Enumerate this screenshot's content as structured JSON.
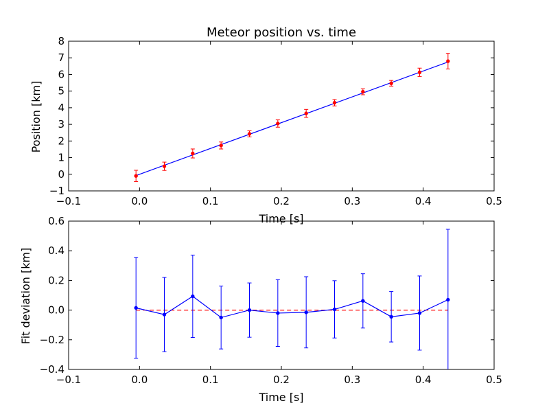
{
  "chart_data": [
    {
      "type": "line",
      "title": "Meteor position vs. time",
      "xlabel": "Time [s]",
      "ylabel": "Position [km]",
      "xlim": [
        -0.1,
        0.5
      ],
      "ylim": [
        -1,
        8
      ],
      "xticks": [
        "−0.1",
        "0.0",
        "0.1",
        "0.2",
        "0.3",
        "0.4",
        "0.5"
      ],
      "xtick_values": [
        -0.1,
        0.0,
        0.1,
        0.2,
        0.3,
        0.4,
        0.5
      ],
      "yticks": [
        "−1",
        "0",
        "1",
        "2",
        "3",
        "4",
        "5",
        "6",
        "7",
        "8"
      ],
      "ytick_values": [
        -1,
        0,
        1,
        2,
        3,
        4,
        5,
        6,
        7,
        8
      ],
      "grid": false,
      "series": [
        {
          "kind": "fit-line",
          "color": "#0000ff",
          "x": [
            -0.005,
            0.435
          ],
          "y": [
            -0.08,
            6.75
          ]
        },
        {
          "kind": "errorbar-points",
          "color": "#ff0000",
          "x": [
            -0.005,
            0.035,
            0.075,
            0.115,
            0.155,
            0.195,
            0.235,
            0.275,
            0.315,
            0.355,
            0.395,
            0.435
          ],
          "y": [
            -0.1,
            0.48,
            1.25,
            1.73,
            2.43,
            3.05,
            3.66,
            4.3,
            4.96,
            5.47,
            6.13,
            6.8
          ],
          "err": [
            0.34,
            0.25,
            0.27,
            0.21,
            0.18,
            0.22,
            0.24,
            0.19,
            0.18,
            0.17,
            0.25,
            0.47
          ]
        }
      ]
    },
    {
      "type": "line",
      "title": "",
      "xlabel": "Time [s]",
      "ylabel": "Fit deviation [km]",
      "xlim": [
        -0.1,
        0.5
      ],
      "ylim": [
        -0.4,
        0.6
      ],
      "xticks": [
        "−0.1",
        "0.0",
        "0.1",
        "0.2",
        "0.3",
        "0.4",
        "0.5"
      ],
      "xtick_values": [
        -0.1,
        0.0,
        0.1,
        0.2,
        0.3,
        0.4,
        0.5
      ],
      "yticks": [
        "−0.4",
        "−0.2",
        "0.0",
        "0.2",
        "0.4",
        "0.6"
      ],
      "ytick_values": [
        -0.4,
        -0.2,
        0.0,
        0.2,
        0.4,
        0.6
      ],
      "grid": false,
      "series": [
        {
          "kind": "zero-reference",
          "color": "#ff0000",
          "dashed": true,
          "x": [
            -0.005,
            0.435
          ],
          "y": [
            0.0,
            0.0
          ]
        },
        {
          "kind": "errorbar-line",
          "color": "#0000ff",
          "x": [
            -0.005,
            0.035,
            0.075,
            0.115,
            0.155,
            0.195,
            0.235,
            0.275,
            0.315,
            0.355,
            0.395,
            0.435
          ],
          "y": [
            0.015,
            -0.03,
            0.093,
            -0.05,
            0.0,
            -0.02,
            -0.015,
            0.005,
            0.062,
            -0.045,
            -0.02,
            0.07
          ],
          "err": [
            0.34,
            0.25,
            0.278,
            0.212,
            0.183,
            0.225,
            0.24,
            0.193,
            0.183,
            0.17,
            0.25,
            0.475
          ]
        }
      ]
    }
  ]
}
